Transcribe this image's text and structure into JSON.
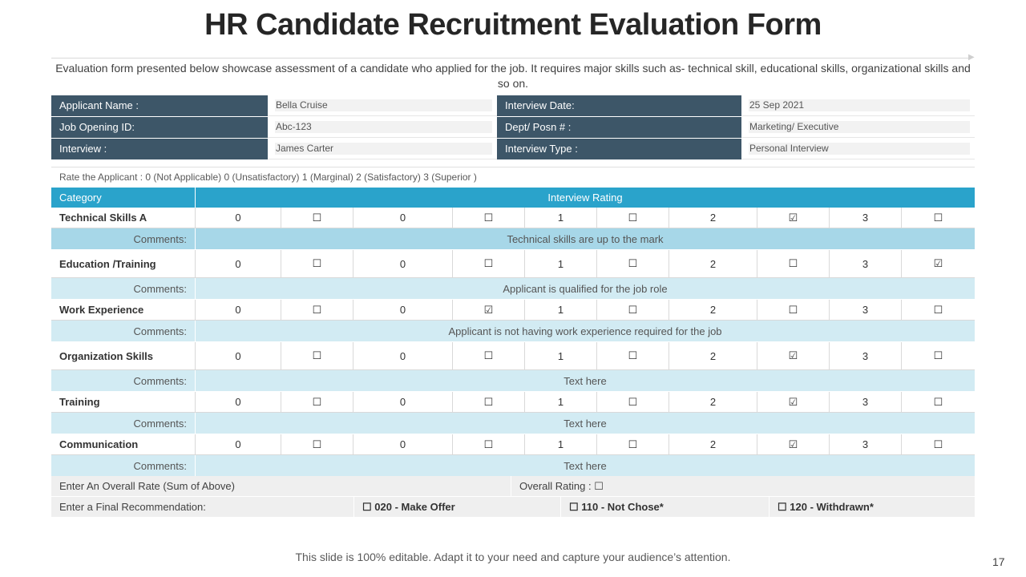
{
  "title": "HR Candidate Recruitment Evaluation Form",
  "intro": "Evaluation form presented below showcase assessment of a candidate who applied for the job. It requires major skills such as- technical skill, educational skills, organizational skills and so on.",
  "info": {
    "applicant_name_label": "Applicant Name :",
    "applicant_name": "Bella Cruise",
    "interview_date_label": "Interview  Date:",
    "interview_date": "25 Sep 2021",
    "job_opening_label": "Job Opening ID:",
    "job_opening": "Abc-123",
    "dept_label": "Dept/ Posn # :",
    "dept": "Marketing/ Executive",
    "interview_label": "Interview  :",
    "interviewer": "James Carter",
    "interview_type_label": "Interview  Type :",
    "interview_type": "Personal Interview"
  },
  "scale_text": "Rate the Applicant : 0 (Not Applicable) 0 (Unsatisfactory)  1 (Marginal)  2 (Satisfactory) 3 (Superior )",
  "rating": {
    "category_header": "Category",
    "rating_header": "Interview  Rating",
    "comments_label": "Comments:",
    "checkbox_empty": "☐",
    "checkbox_checked": "☑",
    "score_labels": [
      "0",
      "0",
      "1",
      "2",
      "3"
    ],
    "rows": [
      {
        "name": "Technical Skills A",
        "checked": 3,
        "comment": "Technical skills are up to the mark"
      },
      {
        "name": "Education /Training",
        "checked": 4,
        "comment": "Applicant is qualified  for the job role"
      },
      {
        "name": "Work Experience",
        "checked": 1,
        "comment": "Applicant is not having  work experience required  for the job"
      },
      {
        "name": "Organization Skills",
        "checked": 3,
        "comment": "Text here"
      },
      {
        "name": "Training",
        "checked": 3,
        "comment": "Text here"
      },
      {
        "name": "Communication",
        "checked": 3,
        "comment": "Text here"
      }
    ]
  },
  "summary": {
    "overall_rate_label": "Enter An Overall Rate (Sum of Above)",
    "overall_rating_label": "Overall  Rating : ☐",
    "final_rec_label": "Enter a Final Recommendation:",
    "option_1": "☐ 020  - Make Offer",
    "option_2": "☐ 110  - Not Chose*",
    "option_3": "☐ 120  - Withdrawn*"
  },
  "footer": "This slide is 100% editable.  Adapt it to your need and capture your audience’s attention.",
  "page_number": "17",
  "colors": {
    "label_bg": "#3d5668",
    "header_bg": "#2aa3cb",
    "comment_bg_strong": "#a7d7e8",
    "comment_bg_light": "#d2ebf3"
  }
}
